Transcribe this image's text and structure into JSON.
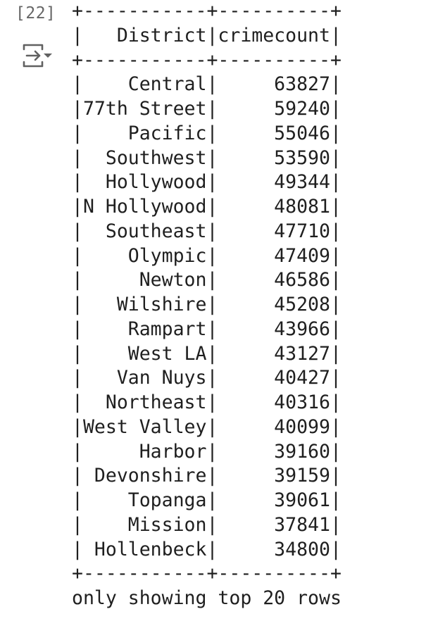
{
  "cell": {
    "execution_count": "[22]",
    "output_toggle_icon": "output-collapse-icon"
  },
  "output": {
    "border_top": "+-----------+----------+",
    "header": "|   District|crimecount|",
    "border_mid": "+-----------+----------+",
    "rows": [
      {
        "district": "Central",
        "crimecount": "63827",
        "text": "|    Central|     63827|"
      },
      {
        "district": "77th Street",
        "crimecount": "59240",
        "text": "|77th Street|     59240|"
      },
      {
        "district": "Pacific",
        "crimecount": "55046",
        "text": "|    Pacific|     55046|"
      },
      {
        "district": "Southwest",
        "crimecount": "53590",
        "text": "|  Southwest|     53590|"
      },
      {
        "district": "Hollywood",
        "crimecount": "49344",
        "text": "|  Hollywood|     49344|"
      },
      {
        "district": "N Hollywood",
        "crimecount": "48081",
        "text": "|N Hollywood|     48081|"
      },
      {
        "district": "Southeast",
        "crimecount": "47710",
        "text": "|  Southeast|     47710|"
      },
      {
        "district": "Olympic",
        "crimecount": "47409",
        "text": "|    Olympic|     47409|"
      },
      {
        "district": "Newton",
        "crimecount": "46586",
        "text": "|     Newton|     46586|"
      },
      {
        "district": "Wilshire",
        "crimecount": "45208",
        "text": "|   Wilshire|     45208|"
      },
      {
        "district": "Rampart",
        "crimecount": "43966",
        "text": "|    Rampart|     43966|"
      },
      {
        "district": "West LA",
        "crimecount": "43127",
        "text": "|    West LA|     43127|"
      },
      {
        "district": "Van Nuys",
        "crimecount": "40427",
        "text": "|   Van Nuys|     40427|"
      },
      {
        "district": "Northeast",
        "crimecount": "40316",
        "text": "|  Northeast|     40316|"
      },
      {
        "district": "West Valley",
        "crimecount": "40099",
        "text": "|West Valley|     40099|"
      },
      {
        "district": "Harbor",
        "crimecount": "39160",
        "text": "|     Harbor|     39160|"
      },
      {
        "district": "Devonshire",
        "crimecount": "39159",
        "text": "| Devonshire|     39159|"
      },
      {
        "district": "Topanga",
        "crimecount": "39061",
        "text": "|    Topanga|     39061|"
      },
      {
        "district": "Mission",
        "crimecount": "37841",
        "text": "|    Mission|     37841|"
      },
      {
        "district": "Hollenbeck",
        "crimecount": "34800",
        "text": "| Hollenbeck|     34800|"
      }
    ],
    "border_bottom": "+-----------+----------+",
    "footer": "only showing top 20 rows"
  },
  "colors": {
    "text": "#1f1f1f",
    "gutter_text": "#666666",
    "icon": "#616161",
    "background": "#ffffff"
  }
}
